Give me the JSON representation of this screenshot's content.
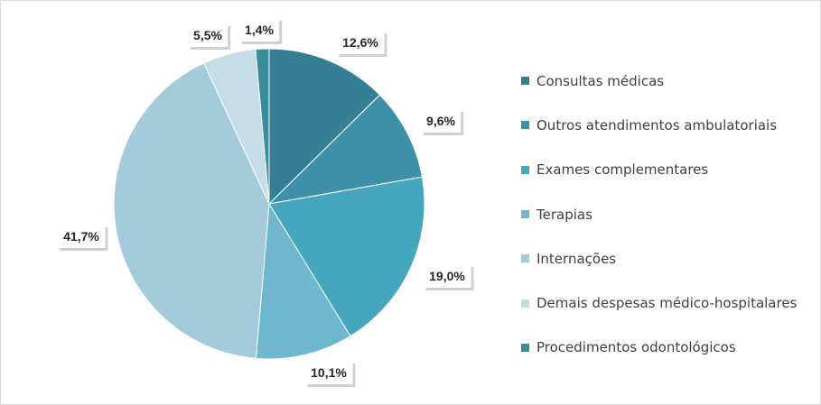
{
  "chart_data": {
    "type": "pie",
    "categories": [
      "Consultas médicas",
      "Outros atendimentos ambulatoriais",
      "Exames complementares",
      "Terapias",
      "Internações",
      "Demais despesas médico-hospitalares",
      "Procedimentos odontológicos"
    ],
    "values": [
      12.6,
      9.6,
      19.0,
      10.1,
      41.7,
      5.5,
      1.4
    ],
    "data_labels": [
      "12,6%",
      "9,6%",
      "19,0%",
      "10,1%",
      "41,7%",
      "5,5%",
      "1,4%"
    ],
    "colors": [
      "#357f94",
      "#3e8fa8",
      "#46a6be",
      "#6fb7cf",
      "#a3cbdb",
      "#c5dde7",
      "#3a8c9c"
    ],
    "legend_position": "right",
    "start_angle_deg": 0,
    "direction": "clockwise"
  }
}
